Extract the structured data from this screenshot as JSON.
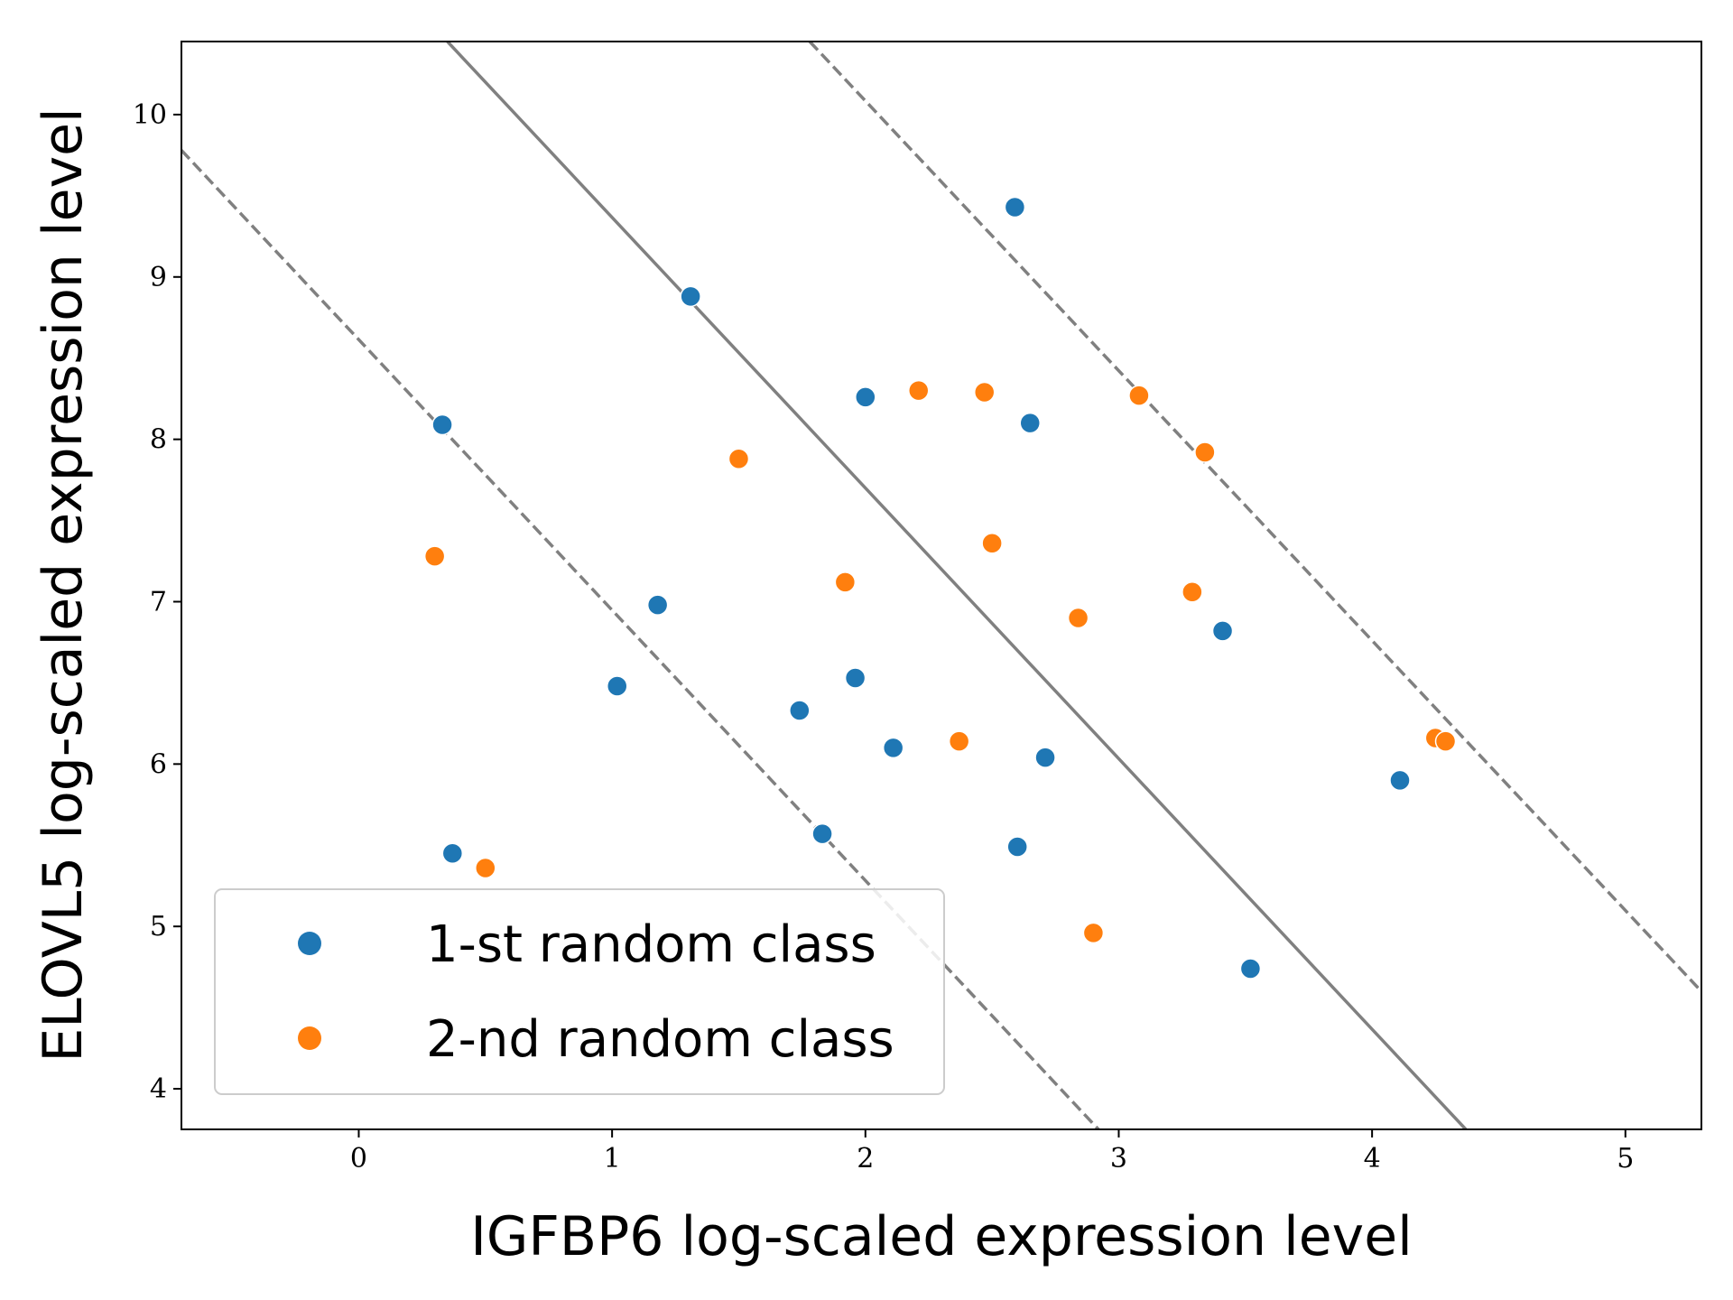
{
  "chart_data": {
    "type": "scatter",
    "title": "",
    "xlabel": "IGFBP6 log-scaled expression level",
    "ylabel": "ELOVL5 log-scaled expression level",
    "xlim": [
      -0.7,
      5.3
    ],
    "ylim": [
      3.75,
      10.45
    ],
    "xticks": [
      0,
      1,
      2,
      3,
      4,
      5
    ],
    "yticks": [
      4,
      5,
      6,
      7,
      8,
      9,
      10
    ],
    "grid": false,
    "legend_position": "lower-left",
    "series": [
      {
        "name": "1-st random class",
        "color": "#1f77b4",
        "points": [
          [
            2.59,
            9.43
          ],
          [
            1.31,
            8.88
          ],
          [
            2.0,
            8.26
          ],
          [
            2.65,
            8.1
          ],
          [
            0.33,
            8.09
          ],
          [
            1.18,
            6.98
          ],
          [
            3.41,
            6.82
          ],
          [
            1.02,
            6.48
          ],
          [
            1.96,
            6.53
          ],
          [
            1.74,
            6.33
          ],
          [
            2.11,
            6.1
          ],
          [
            2.71,
            6.04
          ],
          [
            4.11,
            5.9
          ],
          [
            1.83,
            5.57
          ],
          [
            2.6,
            5.49
          ],
          [
            0.37,
            5.45
          ],
          [
            3.52,
            4.74
          ]
        ]
      },
      {
        "name": "2-nd random class",
        "color": "#ff7f0e",
        "points": [
          [
            2.21,
            8.3
          ],
          [
            2.47,
            8.29
          ],
          [
            3.08,
            8.27
          ],
          [
            3.34,
            7.92
          ],
          [
            1.5,
            7.88
          ],
          [
            2.5,
            7.36
          ],
          [
            0.3,
            7.28
          ],
          [
            1.92,
            7.12
          ],
          [
            3.29,
            7.06
          ],
          [
            2.84,
            6.9
          ],
          [
            2.37,
            6.14
          ],
          [
            4.25,
            6.16
          ],
          [
            4.29,
            6.14
          ],
          [
            0.5,
            5.36
          ],
          [
            2.9,
            4.96
          ]
        ]
      }
    ],
    "lines": [
      {
        "name": "decision-boundary",
        "style": "solid",
        "color": "#808080",
        "x": [
          0.35,
          4.37
        ],
        "y": [
          10.45,
          3.75
        ]
      },
      {
        "name": "margin-lower",
        "style": "dashed",
        "color": "#808080",
        "x": [
          -0.7,
          2.92
        ],
        "y": [
          9.78,
          3.75
        ]
      },
      {
        "name": "margin-upper",
        "style": "dashed",
        "color": "#808080",
        "x": [
          1.78,
          5.3
        ],
        "y": [
          10.45,
          4.6
        ]
      }
    ]
  }
}
